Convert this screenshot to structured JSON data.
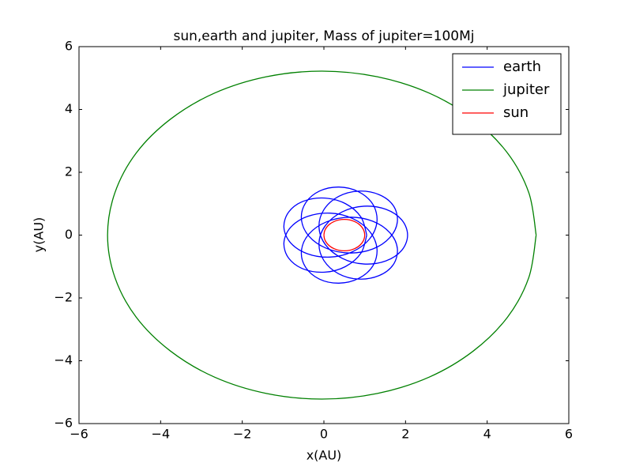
{
  "chart_data": {
    "type": "line",
    "title": "sun,earth and jupiter, Mass of jupiter=100Mj",
    "x_label": "x(AU)",
    "y_label": "y(AU)",
    "xlim": [
      -6,
      6
    ],
    "ylim": [
      -6,
      6
    ],
    "xticks": [
      {
        "value": -6,
        "label": "−6"
      },
      {
        "value": -4,
        "label": "−4"
      },
      {
        "value": -2,
        "label": "−2"
      },
      0,
      2,
      4,
      6
    ],
    "yticks": [
      {
        "value": -6,
        "label": "−6"
      },
      {
        "value": -4,
        "label": "−4"
      },
      {
        "value": -2,
        "label": "−2"
      },
      0,
      2,
      4,
      6
    ],
    "legend": "upper right",
    "series": [
      {
        "name": "earth",
        "color": "#0000ff",
        "x": [
          1.05,
          0.91,
          0.53,
          0.02,
          -0.5,
          -0.86,
          -0.98,
          -0.82,
          -0.41,
          0.15,
          0.7,
          1.12,
          1.3,
          1.2,
          0.85,
          0.37,
          -0.11,
          -0.45,
          -0.55,
          -0.37,
          0.06,
          0.63,
          1.2,
          1.62,
          1.8,
          1.7,
          1.35,
          0.85,
          0.36,
          0,
          -0.12,
          0.04,
          0.45,
          0.98,
          1.52,
          1.91,
          2.05,
          1.91,
          1.52,
          0.98,
          0.45,
          0.04,
          -0.12,
          0,
          0.36,
          0.85,
          1.35,
          1.7,
          1.8,
          1.62,
          1.2,
          0.63,
          0.06,
          -0.37,
          -0.55,
          -0.45,
          -0.11,
          0.37,
          0.85,
          1.2,
          1.3,
          1.12,
          0.7,
          0.15,
          -0.41,
          -0.82,
          -0.98,
          -0.86,
          -0.5,
          0.02,
          0.53,
          0.91,
          1.05
        ],
        "y": [
          0,
          0.57,
          1.0,
          1.18,
          1.08,
          0.74,
          0.25,
          -0.24,
          -0.59,
          -0.7,
          -0.53,
          -0.12,
          0.43,
          0.98,
          1.38,
          1.53,
          1.4,
          1.02,
          0.5,
          -0.03,
          -0.42,
          -0.57,
          -0.44,
          -0.07,
          0.43,
          0.94,
          1.29,
          1.4,
          1.23,
          0.81,
          0.25,
          -0.31,
          -0.74,
          -0.92,
          -0.82,
          -0.48,
          0,
          0.48,
          0.82,
          0.92,
          0.74,
          0.31,
          -0.25,
          -0.81,
          -1.23,
          -1.4,
          -1.29,
          -0.94,
          -0.43,
          0.07,
          0.44,
          0.57,
          0.42,
          0.03,
          -0.5,
          -1.02,
          -1.4,
          -1.53,
          -1.38,
          -0.98,
          -0.43,
          0.12,
          0.53,
          0.7,
          0.59,
          0.24,
          -0.25,
          -0.74,
          -1.08,
          -1.18,
          -1.0,
          -0.57,
          0
        ]
      },
      {
        "name": "jupiter",
        "color": "#008000",
        "x": [
          5.2,
          5.02,
          4.5,
          3.66,
          2.58,
          1.31,
          -0.05,
          -1.41,
          -2.68,
          -3.76,
          -4.6,
          -5.12,
          -5.3,
          -5.12,
          -4.6,
          -3.76,
          -2.68,
          -1.41,
          -0.05,
          1.31,
          2.58,
          3.66,
          4.5,
          5.02,
          5.2
        ],
        "y": [
          0,
          1.35,
          2.61,
          3.69,
          4.52,
          5.04,
          5.22,
          5.04,
          4.52,
          3.69,
          2.61,
          1.35,
          0,
          -1.35,
          -2.61,
          -3.69,
          -4.52,
          -5.04,
          -5.22,
          -5.04,
          -4.52,
          -3.69,
          -2.61,
          -1.35,
          0
        ]
      },
      {
        "name": "sun",
        "color": "#ff0000",
        "x": [
          0,
          0.017,
          0.067,
          0.146,
          0.25,
          0.37,
          0.5,
          0.629,
          0.75,
          0.854,
          0.933,
          0.983,
          1,
          0.983,
          0.933,
          0.854,
          0.75,
          0.629,
          0.5,
          0.37,
          0.25,
          0.146,
          0.067,
          0.017,
          0
        ],
        "y": [
          0,
          0.129,
          0.25,
          0.354,
          0.433,
          0.483,
          0.5,
          0.483,
          0.433,
          0.354,
          0.25,
          0.129,
          0,
          -0.129,
          -0.25,
          -0.354,
          -0.433,
          -0.483,
          -0.5,
          -0.483,
          -0.433,
          -0.354,
          -0.25,
          -0.129,
          0
        ]
      }
    ]
  }
}
